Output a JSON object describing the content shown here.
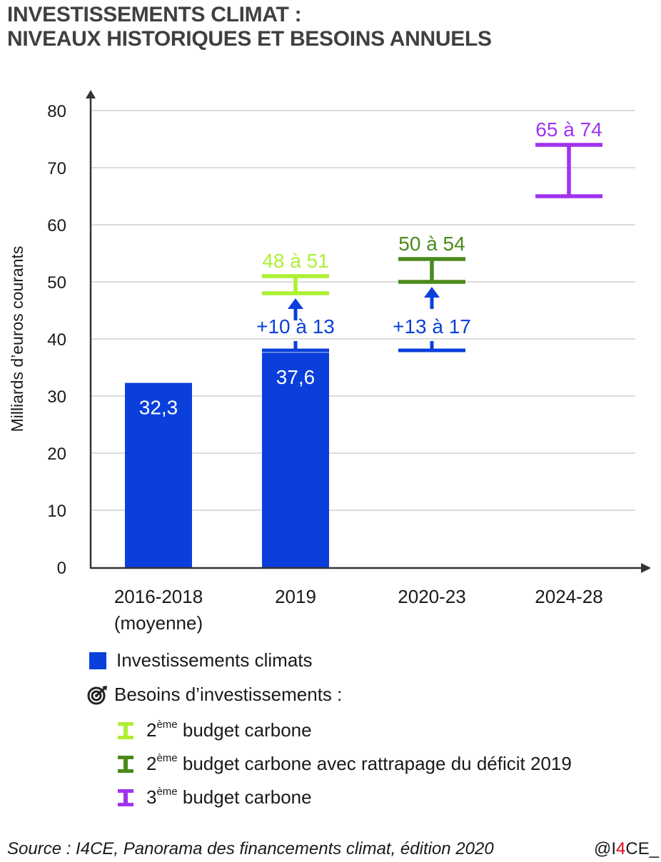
{
  "title": {
    "line1": "INVESTISSEMENTS CLIMAT :",
    "line2": "NIVEAUX HISTORIQUES ET BESOINS ANNUELS"
  },
  "colors": {
    "bar": "#0a3fdc",
    "arrow": "#0a3fdc",
    "budget2": "#adf032",
    "budget2_catchup": "#4a8a1c",
    "budget3": "#a033ee",
    "grid": "#c8c8c8",
    "axis": "#333333"
  },
  "chart_data": {
    "type": "bar",
    "title": "INVESTISSEMENTS CLIMAT : NIVEAUX HISTORIQUES ET BESOINS ANNUELS",
    "ylabel": "Milliards d’euros courants",
    "xlabel": "",
    "ylim": [
      0,
      80
    ],
    "yticks": [
      0,
      10,
      20,
      30,
      40,
      50,
      60,
      70,
      80
    ],
    "grid": true,
    "categories": [
      {
        "line1": "2016-2018",
        "line2": "(moyenne)"
      },
      {
        "line1": "2019",
        "line2": ""
      },
      {
        "line1": "2020-23",
        "line2": ""
      },
      {
        "line1": "2024-28",
        "line2": ""
      }
    ],
    "series": [
      {
        "name": "Investissements climats",
        "type": "bar",
        "values": [
          32.3,
          37.6,
          null,
          null
        ],
        "labels": [
          "32,3",
          "37,6",
          "",
          ""
        ]
      }
    ],
    "ranges": [
      {
        "category_index": 1,
        "low": 48,
        "high": 51,
        "label": "48 à 51",
        "series": "2ème budget carbone",
        "color_key": "budget2"
      },
      {
        "category_index": 2,
        "low": 50,
        "high": 54,
        "label": "50 à 54",
        "series": "2ème budget carbone avec rattrapage du déficit 2019",
        "color_key": "budget2_catchup"
      },
      {
        "category_index": 3,
        "low": 65,
        "high": 74,
        "label": "65 à 74",
        "series": "3ème budget carbone",
        "color_key": "budget3"
      }
    ],
    "gaps": [
      {
        "category_index": 1,
        "from": 38,
        "to": 48,
        "label": "+10 à 13"
      },
      {
        "category_index": 2,
        "from": 38,
        "to": 50,
        "label": "+13 à 17"
      }
    ],
    "legend": {
      "placement": "bottom-left",
      "investments": "Investissements climats",
      "needs_header": "Besoins d’investissements :",
      "items": [
        {
          "num": "2",
          "sup": "ème",
          "text": " budget carbone",
          "color_key": "budget2"
        },
        {
          "num": "2",
          "sup": "ème",
          "text": " budget carbone avec rattrapage du déficit 2019",
          "color_key": "budget2_catchup"
        },
        {
          "num": "3",
          "sup": "ème",
          "text": " budget carbone",
          "color_key": "budget3"
        }
      ]
    }
  },
  "footer": {
    "source": "Source : I4CE, Panorama des financements climat, édition 2020",
    "handle_prefix": "@I",
    "handle_red": "4",
    "handle_suffix": "CE_"
  }
}
